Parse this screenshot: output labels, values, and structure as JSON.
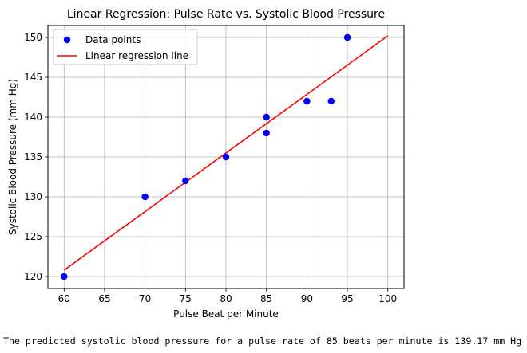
{
  "chart_data": {
    "type": "scatter",
    "title": "Linear Regression: Pulse Rate vs. Systolic Blood Pressure",
    "xlabel": "Pulse Beat per Minute",
    "ylabel": "Systolic Blood Pressure (mm Hg)",
    "xlim": [
      58,
      102
    ],
    "ylim": [
      118.5,
      151.5
    ],
    "xticks": [
      60,
      65,
      70,
      75,
      80,
      85,
      90,
      95,
      100
    ],
    "yticks": [
      120,
      125,
      130,
      135,
      140,
      145,
      150
    ],
    "grid": true,
    "legend_position": "top-left",
    "series": [
      {
        "name": "Data points",
        "kind": "scatter",
        "color": "#0000ff",
        "x": [
          60,
          70,
          75,
          80,
          85,
          85,
          90,
          93,
          95
        ],
        "y": [
          120,
          130,
          132,
          135,
          140,
          138,
          142,
          142,
          150
        ]
      },
      {
        "name": "Linear regression line",
        "kind": "line",
        "color": "#ff0000",
        "x": [
          60,
          100
        ],
        "y": [
          120.8,
          150.2
        ]
      }
    ]
  },
  "output_text": "The predicted systolic blood pressure for a pulse rate of 85 beats per minute is 139.17 mm Hg"
}
